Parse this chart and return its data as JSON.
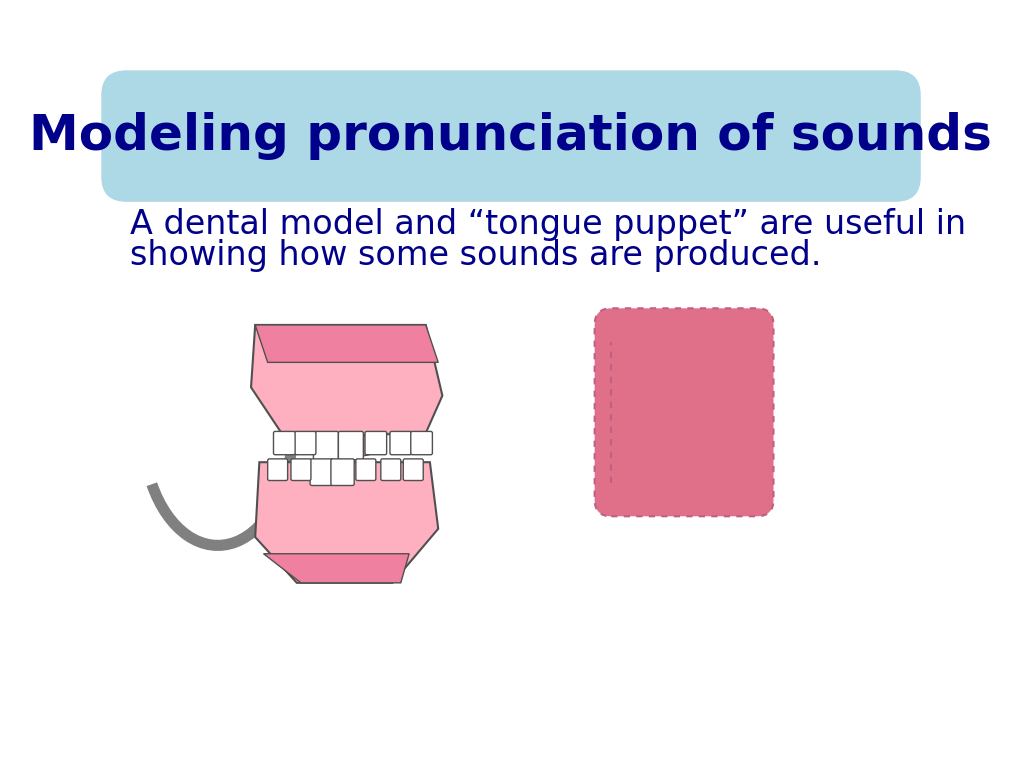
{
  "title": "Modeling pronunciation of sounds",
  "title_color": "#00008B",
  "title_bg_color": "#ADD8E6",
  "body_text_line1": "A dental model and “tongue puppet” are useful in",
  "body_text_line2": "showing how some sounds are produced.",
  "body_text_color": "#00008B",
  "bg_color": "#FFFFFF",
  "title_fontsize": 36,
  "body_fontsize": 24,
  "pink_gum": "#F080A0",
  "pink_light": "#FFB0C0",
  "pink_tongue": "#E0708A",
  "grey_hinge": "#808080",
  "white_teeth": "#FFFFFF",
  "teeth_outline": "#C0C0C0"
}
